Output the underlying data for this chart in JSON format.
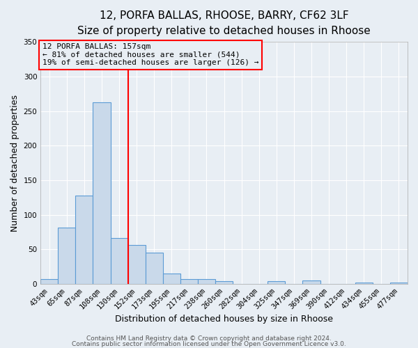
{
  "title": "12, PORFA BALLAS, RHOOSE, BARRY, CF62 3LF",
  "subtitle": "Size of property relative to detached houses in Rhoose",
  "xlabel": "Distribution of detached houses by size in Rhoose",
  "ylabel": "Number of detached properties",
  "bin_labels": [
    "43sqm",
    "65sqm",
    "87sqm",
    "108sqm",
    "130sqm",
    "152sqm",
    "173sqm",
    "195sqm",
    "217sqm",
    "238sqm",
    "260sqm",
    "282sqm",
    "304sqm",
    "325sqm",
    "347sqm",
    "369sqm",
    "390sqm",
    "412sqm",
    "434sqm",
    "455sqm",
    "477sqm"
  ],
  "bar_values": [
    7,
    82,
    128,
    263,
    66,
    56,
    45,
    15,
    7,
    7,
    4,
    0,
    0,
    4,
    0,
    5,
    0,
    0,
    2,
    0,
    2
  ],
  "bar_color": "#c9d9ea",
  "bar_edge_color": "#5b9bd5",
  "vline_x_idx": 5,
  "vline_color": "red",
  "annotation_line1": "12 PORFA BALLAS: 157sqm",
  "annotation_line2": "← 81% of detached houses are smaller (544)",
  "annotation_line3": "19% of semi-detached houses are larger (126) →",
  "annotation_box_edge_color": "red",
  "ylim": [
    0,
    350
  ],
  "yticks": [
    0,
    50,
    100,
    150,
    200,
    250,
    300,
    350
  ],
  "footer1": "Contains HM Land Registry data © Crown copyright and database right 2024.",
  "footer2": "Contains public sector information licensed under the Open Government Licence v3.0.",
  "background_color": "#e8eef4",
  "plot_bg_color": "#e8eef4",
  "grid_color": "#ffffff",
  "title_fontsize": 11,
  "subtitle_fontsize": 10,
  "axis_label_fontsize": 9,
  "tick_fontsize": 7.5,
  "annotation_fontsize": 8,
  "footer_fontsize": 6.5
}
